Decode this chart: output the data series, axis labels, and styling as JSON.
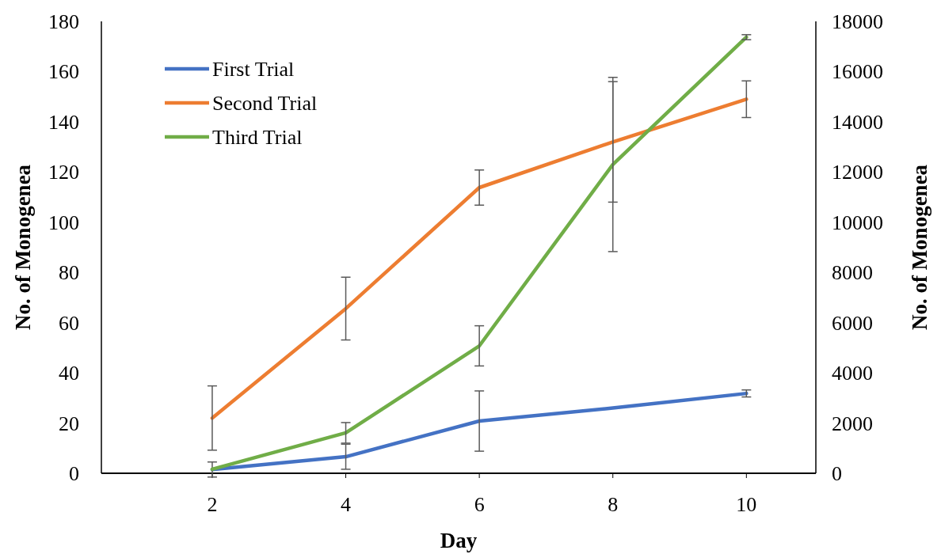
{
  "chart_data": {
    "type": "line",
    "xlabel": "Day",
    "ylabel": "No. of Monogenea",
    "y2label": "No. of Monogenea",
    "x": [
      2,
      4,
      6,
      8,
      10
    ],
    "xlim": [
      0.34,
      11.04
    ],
    "xticks": [
      2,
      4,
      6,
      8,
      10
    ],
    "ylim": [
      0,
      180
    ],
    "yticks": [
      0,
      20,
      40,
      60,
      80,
      100,
      120,
      140,
      160,
      180
    ],
    "y2lim": [
      0,
      18000
    ],
    "y2ticks": [
      0,
      2000,
      4000,
      6000,
      8000,
      10000,
      12000,
      14000,
      16000,
      18000
    ],
    "grid": false,
    "legend": "top left",
    "marker": "none",
    "line_style": "solid",
    "series": [
      {
        "name": "First Trial",
        "color": "#4472c4",
        "values": [
          1.5,
          6.6,
          20.8,
          26,
          31.8
        ],
        "errors": [
          3,
          5,
          12,
          null,
          1.4
        ]
      },
      {
        "name": "Second Trial",
        "color": "#ed7d31",
        "values": [
          22,
          65.6,
          113.8,
          132,
          149
        ],
        "errors": [
          12.8,
          12.5,
          7,
          24,
          7.3
        ]
      },
      {
        "name": "Third Trial",
        "color": "#70ad47",
        "axis": "y2",
        "values": [
          160,
          1610,
          5075,
          12300,
          17370
        ],
        "errors": [
          null,
          410,
          800,
          3470,
          100
        ]
      }
    ]
  }
}
